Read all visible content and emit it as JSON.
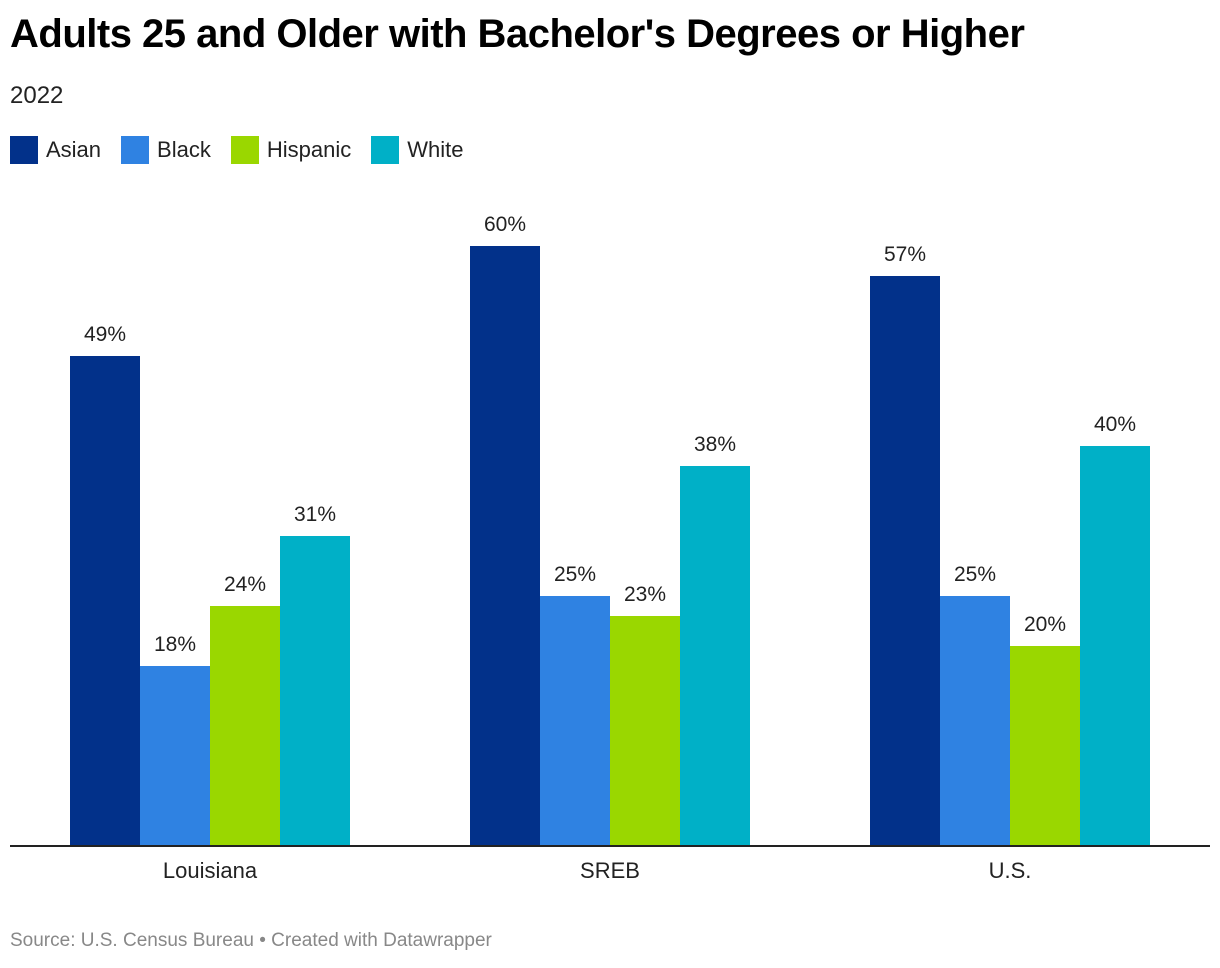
{
  "header": {
    "title": "Adults 25 and Older with Bachelor's Degrees or Higher",
    "subtitle": "2022"
  },
  "footer": {
    "source": "Source: U.S. Census Bureau • Created with Datawrapper"
  },
  "chart_data": {
    "type": "bar",
    "title": "Adults 25 and Older with Bachelor's Degrees or Higher",
    "subtitle": "2022",
    "categories": [
      "Louisiana",
      "SREB",
      "U.S."
    ],
    "series": [
      {
        "name": "Asian",
        "color": "#02318a",
        "values": [
          49,
          60,
          57
        ]
      },
      {
        "name": "Black",
        "color": "#2f82e2",
        "values": [
          18,
          25,
          25
        ]
      },
      {
        "name": "Hispanic",
        "color": "#9ad700",
        "values": [
          24,
          23,
          20
        ]
      },
      {
        "name": "White",
        "color": "#00b0c7",
        "values": [
          31,
          38,
          40
        ]
      }
    ],
    "value_suffix": "%",
    "ylim": [
      0,
      60
    ],
    "xlabel": "",
    "ylabel": "",
    "grid": false,
    "legend": "top-left"
  }
}
